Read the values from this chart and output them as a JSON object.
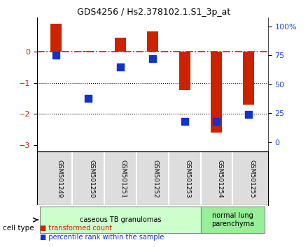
{
  "title": "GDS4256 / Hs2.378102.1.S1_3p_at",
  "samples": [
    "GSM501249",
    "GSM501250",
    "GSM501251",
    "GSM501252",
    "GSM501253",
    "GSM501254",
    "GSM501255"
  ],
  "transformed_count": [
    0.9,
    0.02,
    0.45,
    0.65,
    -1.22,
    -2.6,
    -1.7
  ],
  "percentile_rank": [
    75,
    38,
    65,
    72,
    18,
    18,
    24
  ],
  "ylim_left": [
    -3.2,
    1.1
  ],
  "ylim_right": [
    -8.0,
    108.0
  ],
  "y_ticks_left": [
    0,
    -1,
    -2,
    -3
  ],
  "y_ticks_right": [
    0,
    25,
    50,
    75,
    100
  ],
  "hline_y": 0,
  "dotted_lines": [
    -1,
    -2
  ],
  "bar_color": "#cc2200",
  "dot_color": "#1133cc",
  "cell_types": [
    {
      "label": "caseous TB granulomas",
      "samples": [
        0,
        1,
        2,
        3,
        4
      ],
      "color": "#ccffcc"
    },
    {
      "label": "normal lung\nparenchyma",
      "samples": [
        5,
        6
      ],
      "color": "#99ee99"
    }
  ],
  "legend_bar_label": "transformed count",
  "legend_dot_label": "percentile rank within the sample",
  "cell_type_label": "cell type",
  "bar_width": 0.35,
  "dot_size": 60,
  "right_axis_color": "#2244cc",
  "left_axis_color": "#cc2200",
  "dashed_line_color": "#cc2200",
  "background_color": "#ffffff"
}
